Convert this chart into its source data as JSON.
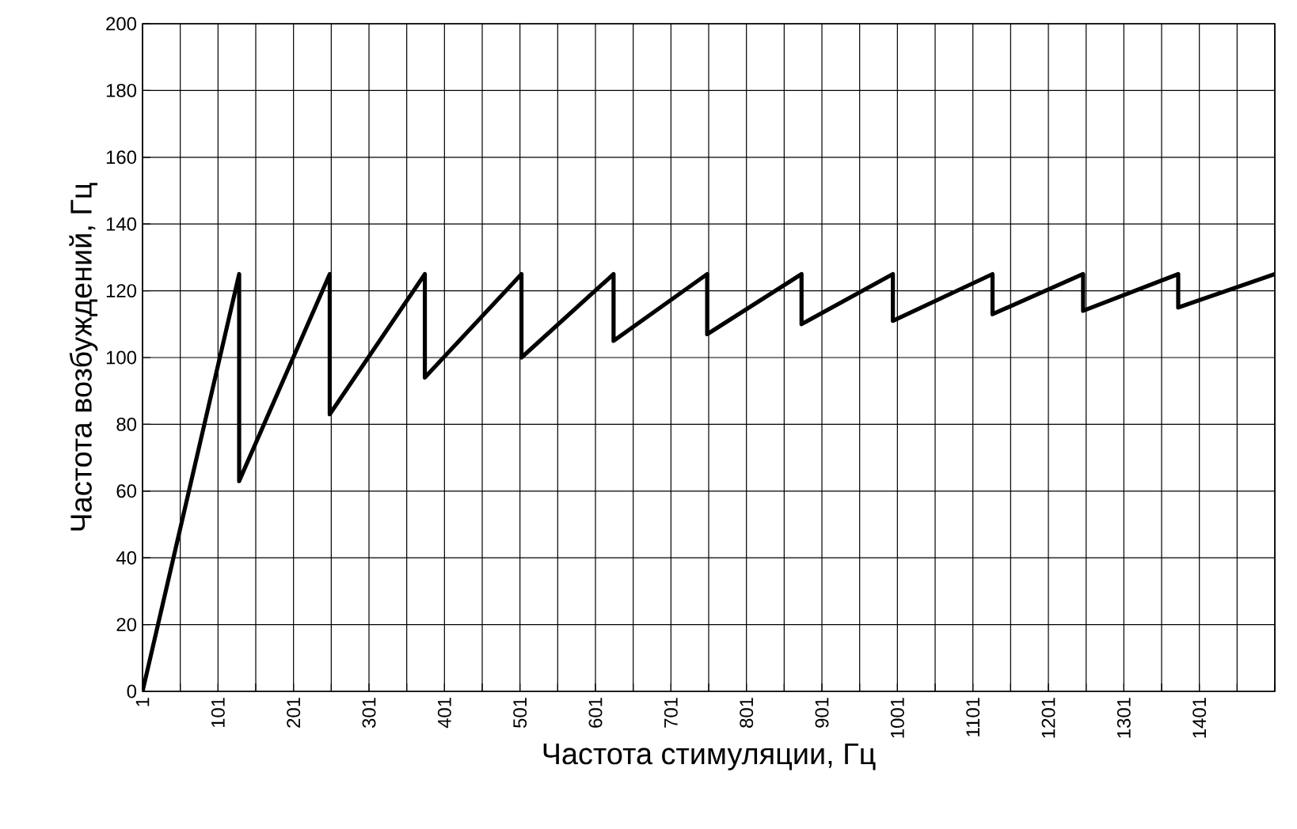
{
  "chart_data": {
    "type": "line",
    "xlabel": "Частота  стимуляции, Гц",
    "ylabel": "Частота возбуждений, Гц",
    "x": [
      1,
      129,
      129,
      249,
      249,
      375,
      375,
      503,
      503,
      625,
      625,
      749,
      749,
      874,
      874,
      995,
      995,
      1127,
      1127,
      1247,
      1247,
      1373,
      1373,
      1501
    ],
    "series": [
      {
        "color": "#000000",
        "values": [
          0,
          125,
          63,
          125,
          83,
          125,
          94,
          125,
          100,
          125,
          105,
          125,
          107,
          125,
          110,
          125,
          111,
          125,
          113,
          125,
          114,
          125,
          115,
          125
        ]
      }
    ],
    "xlim": [
      1,
      1501
    ],
    "xticks": [
      1,
      {
        "value": 51,
        "label": null
      },
      101,
      {
        "value": 151,
        "label": null
      },
      201,
      {
        "value": 251,
        "label": null
      },
      301,
      {
        "value": 351,
        "label": null
      },
      401,
      {
        "value": 451,
        "label": null
      },
      501,
      {
        "value": 551,
        "label": null
      },
      601,
      {
        "value": 651,
        "label": null
      },
      701,
      {
        "value": 751,
        "label": null
      },
      801,
      {
        "value": 851,
        "label": null
      },
      901,
      {
        "value": 951,
        "label": null
      },
      1001,
      {
        "value": 1051,
        "label": null
      },
      1101,
      {
        "value": 1151,
        "label": null
      },
      1201,
      {
        "value": 1251,
        "label": null
      },
      1301,
      {
        "value": 1351,
        "label": null
      },
      1401,
      {
        "value": 1451,
        "label": null
      },
      {
        "value": 1501,
        "label": null
      }
    ],
    "ylim": [
      0,
      200
    ],
    "yticks": [
      0,
      20,
      40,
      60,
      80,
      100,
      120,
      140,
      160,
      180,
      200
    ],
    "grid": true,
    "marker": "none",
    "line_style": "solid"
  }
}
